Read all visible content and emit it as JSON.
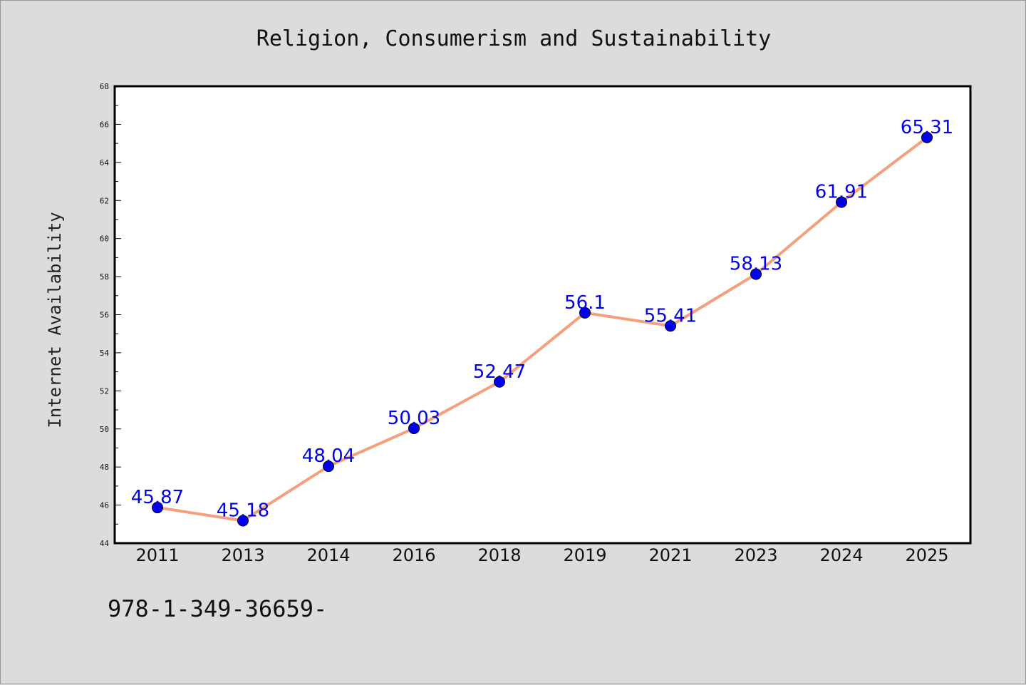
{
  "chart_data": {
    "type": "line",
    "title": "Religion, Consumerism and Sustainability",
    "xlabel": "",
    "ylabel": "Internet Availability",
    "categories": [
      "2011",
      "2013",
      "2014",
      "2016",
      "2018",
      "2019",
      "2021",
      "2023",
      "2024",
      "2025"
    ],
    "values": [
      45.87,
      45.18,
      48.04,
      50.03,
      52.47,
      56.1,
      55.41,
      58.13,
      61.91,
      65.31
    ],
    "data_labels": [
      "45.87",
      "45.18",
      "48.04",
      "50.03",
      "52.47",
      "56.1",
      "55.41",
      "58.13",
      "61.91",
      "65.31"
    ],
    "ylim": [
      44,
      68
    ],
    "yticks": [
      "44",
      "46",
      "48",
      "50",
      "52",
      "54",
      "56",
      "58",
      "60",
      "62",
      "64",
      "66",
      "68"
    ],
    "grid": false,
    "legend": "none",
    "colors": {
      "line": "#f4a07f",
      "marker": "#0000ee",
      "label": "#0000ee",
      "background": "#dcdcdc",
      "plot_area": "#ffffff"
    }
  },
  "footnote": "978-1-349-36659-"
}
